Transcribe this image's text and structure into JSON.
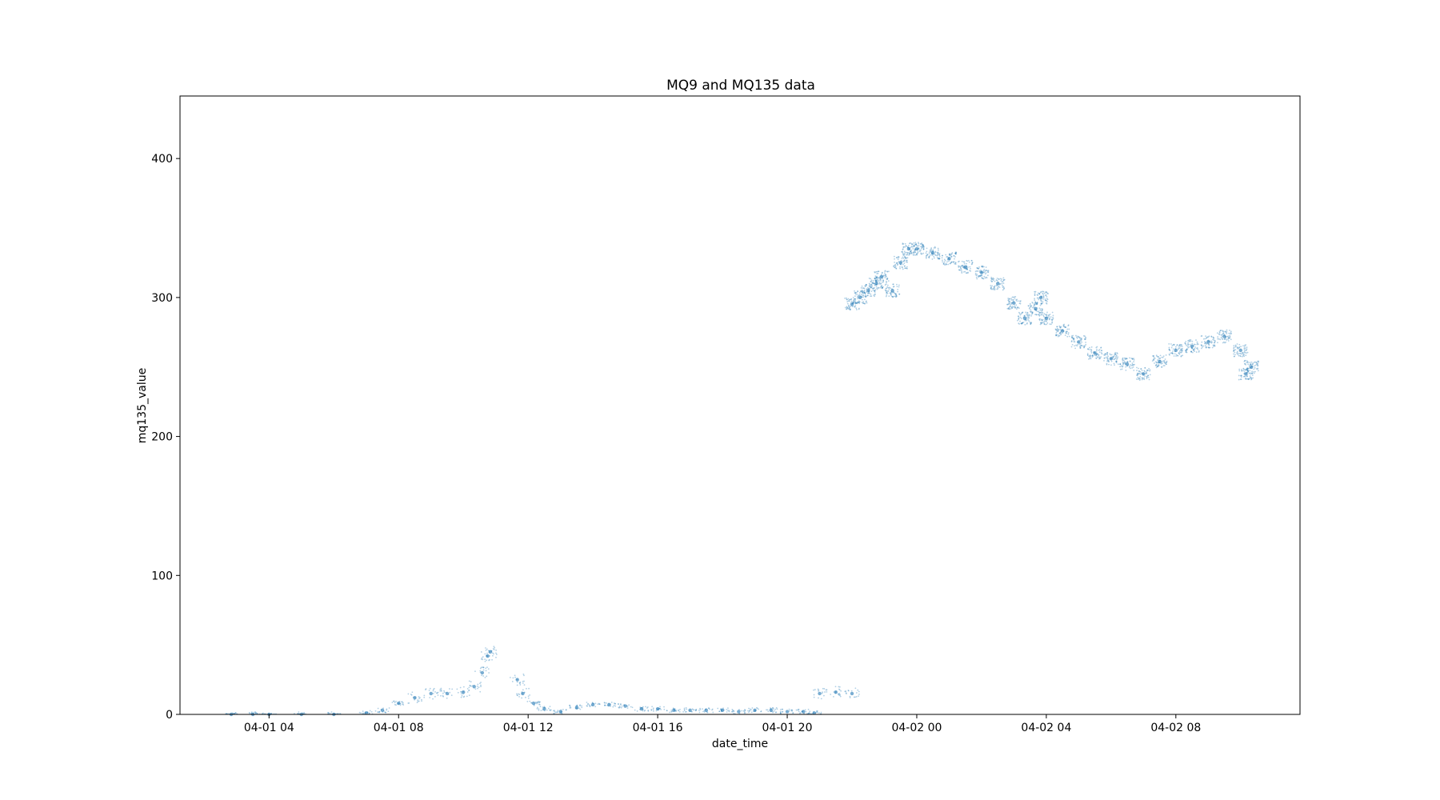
{
  "chart_data": {
    "type": "scatter",
    "title": "MQ9 and MQ135 data",
    "xlabel": "date_time",
    "ylabel": "mq135_value",
    "xlim": [
      "04-01 01:15",
      "04-02 11:50"
    ],
    "ylim": [
      0,
      445
    ],
    "x_ticks": [
      {
        "value": "04-01 04:00",
        "label": "04-01 04"
      },
      {
        "value": "04-01 08:00",
        "label": "04-01 08"
      },
      {
        "value": "04-01 12:00",
        "label": "04-01 12"
      },
      {
        "value": "04-01 16:00",
        "label": "04-01 16"
      },
      {
        "value": "04-01 20:00",
        "label": "04-01 20"
      },
      {
        "value": "04-02 00:00",
        "label": "04-02 00"
      },
      {
        "value": "04-02 04:00",
        "label": "04-02 04"
      },
      {
        "value": "04-02 08:00",
        "label": "04-02 08"
      }
    ],
    "y_ticks": [
      {
        "value": 0,
        "label": "0"
      },
      {
        "value": 100,
        "label": "100"
      },
      {
        "value": 200,
        "label": "200"
      },
      {
        "value": 300,
        "label": "300"
      },
      {
        "value": 400,
        "label": "400"
      }
    ],
    "grid": false,
    "legend": "none",
    "marker_color": "#1f77b4",
    "series": [
      {
        "x": [
          "04-01 02:50",
          "04-01 03:30",
          "04-01 04:00",
          "04-01 05:00",
          "04-01 06:00",
          "04-01 07:00",
          "04-01 07:30",
          "04-01 08:00",
          "04-01 08:30",
          "04-01 09:00",
          "04-01 09:30",
          "04-01 10:00",
          "04-01 10:20",
          "04-01 10:35",
          "04-01 10:45",
          "04-01 10:50",
          "04-01 11:40",
          "04-01 11:50",
          "04-01 12:10",
          "04-01 12:30",
          "04-01 13:00",
          "04-01 13:30",
          "04-01 14:00",
          "04-01 14:30",
          "04-01 15:00",
          "04-01 15:30",
          "04-01 16:00",
          "04-01 16:30",
          "04-01 17:00",
          "04-01 17:30",
          "04-01 18:00",
          "04-01 18:30",
          "04-01 19:00",
          "04-01 19:30",
          "04-01 20:00",
          "04-01 20:30",
          "04-01 20:50",
          "04-01 21:00",
          "04-01 21:30",
          "04-01 22:00",
          "04-01 22:00",
          "04-01 22:15",
          "04-01 22:30",
          "04-01 22:45",
          "04-01 22:55",
          "04-01 23:15",
          "04-01 23:30",
          "04-01 23:45",
          "04-02 00:00",
          "04-02 00:30",
          "04-02 01:00",
          "04-02 01:30",
          "04-02 02:00",
          "04-02 02:30",
          "04-02 03:00",
          "04-02 03:20",
          "04-02 03:40",
          "04-02 03:50",
          "04-02 04:00",
          "04-02 04:30",
          "04-02 05:00",
          "04-02 05:30",
          "04-02 06:00",
          "04-02 06:30",
          "04-02 07:00",
          "04-02 07:30",
          "04-02 08:00",
          "04-02 08:30",
          "04-02 09:00",
          "04-02 09:30",
          "04-02 10:00",
          "04-02 10:10",
          "04-02 10:20"
        ],
        "y": [
          0,
          0,
          0,
          0,
          0,
          1,
          3,
          8,
          12,
          15,
          15,
          16,
          20,
          30,
          42,
          45,
          25,
          15,
          8,
          4,
          2,
          5,
          7,
          7,
          6,
          4,
          4,
          3,
          3,
          3,
          3,
          2,
          3,
          3,
          2,
          2,
          1,
          15,
          16,
          15,
          295,
          300,
          305,
          310,
          315,
          305,
          325,
          335,
          335,
          332,
          328,
          322,
          318,
          310,
          296,
          285,
          292,
          300,
          285,
          276,
          268,
          260,
          256,
          252,
          245,
          254,
          262,
          265,
          268,
          272,
          262,
          245,
          250
        ]
      }
    ]
  }
}
